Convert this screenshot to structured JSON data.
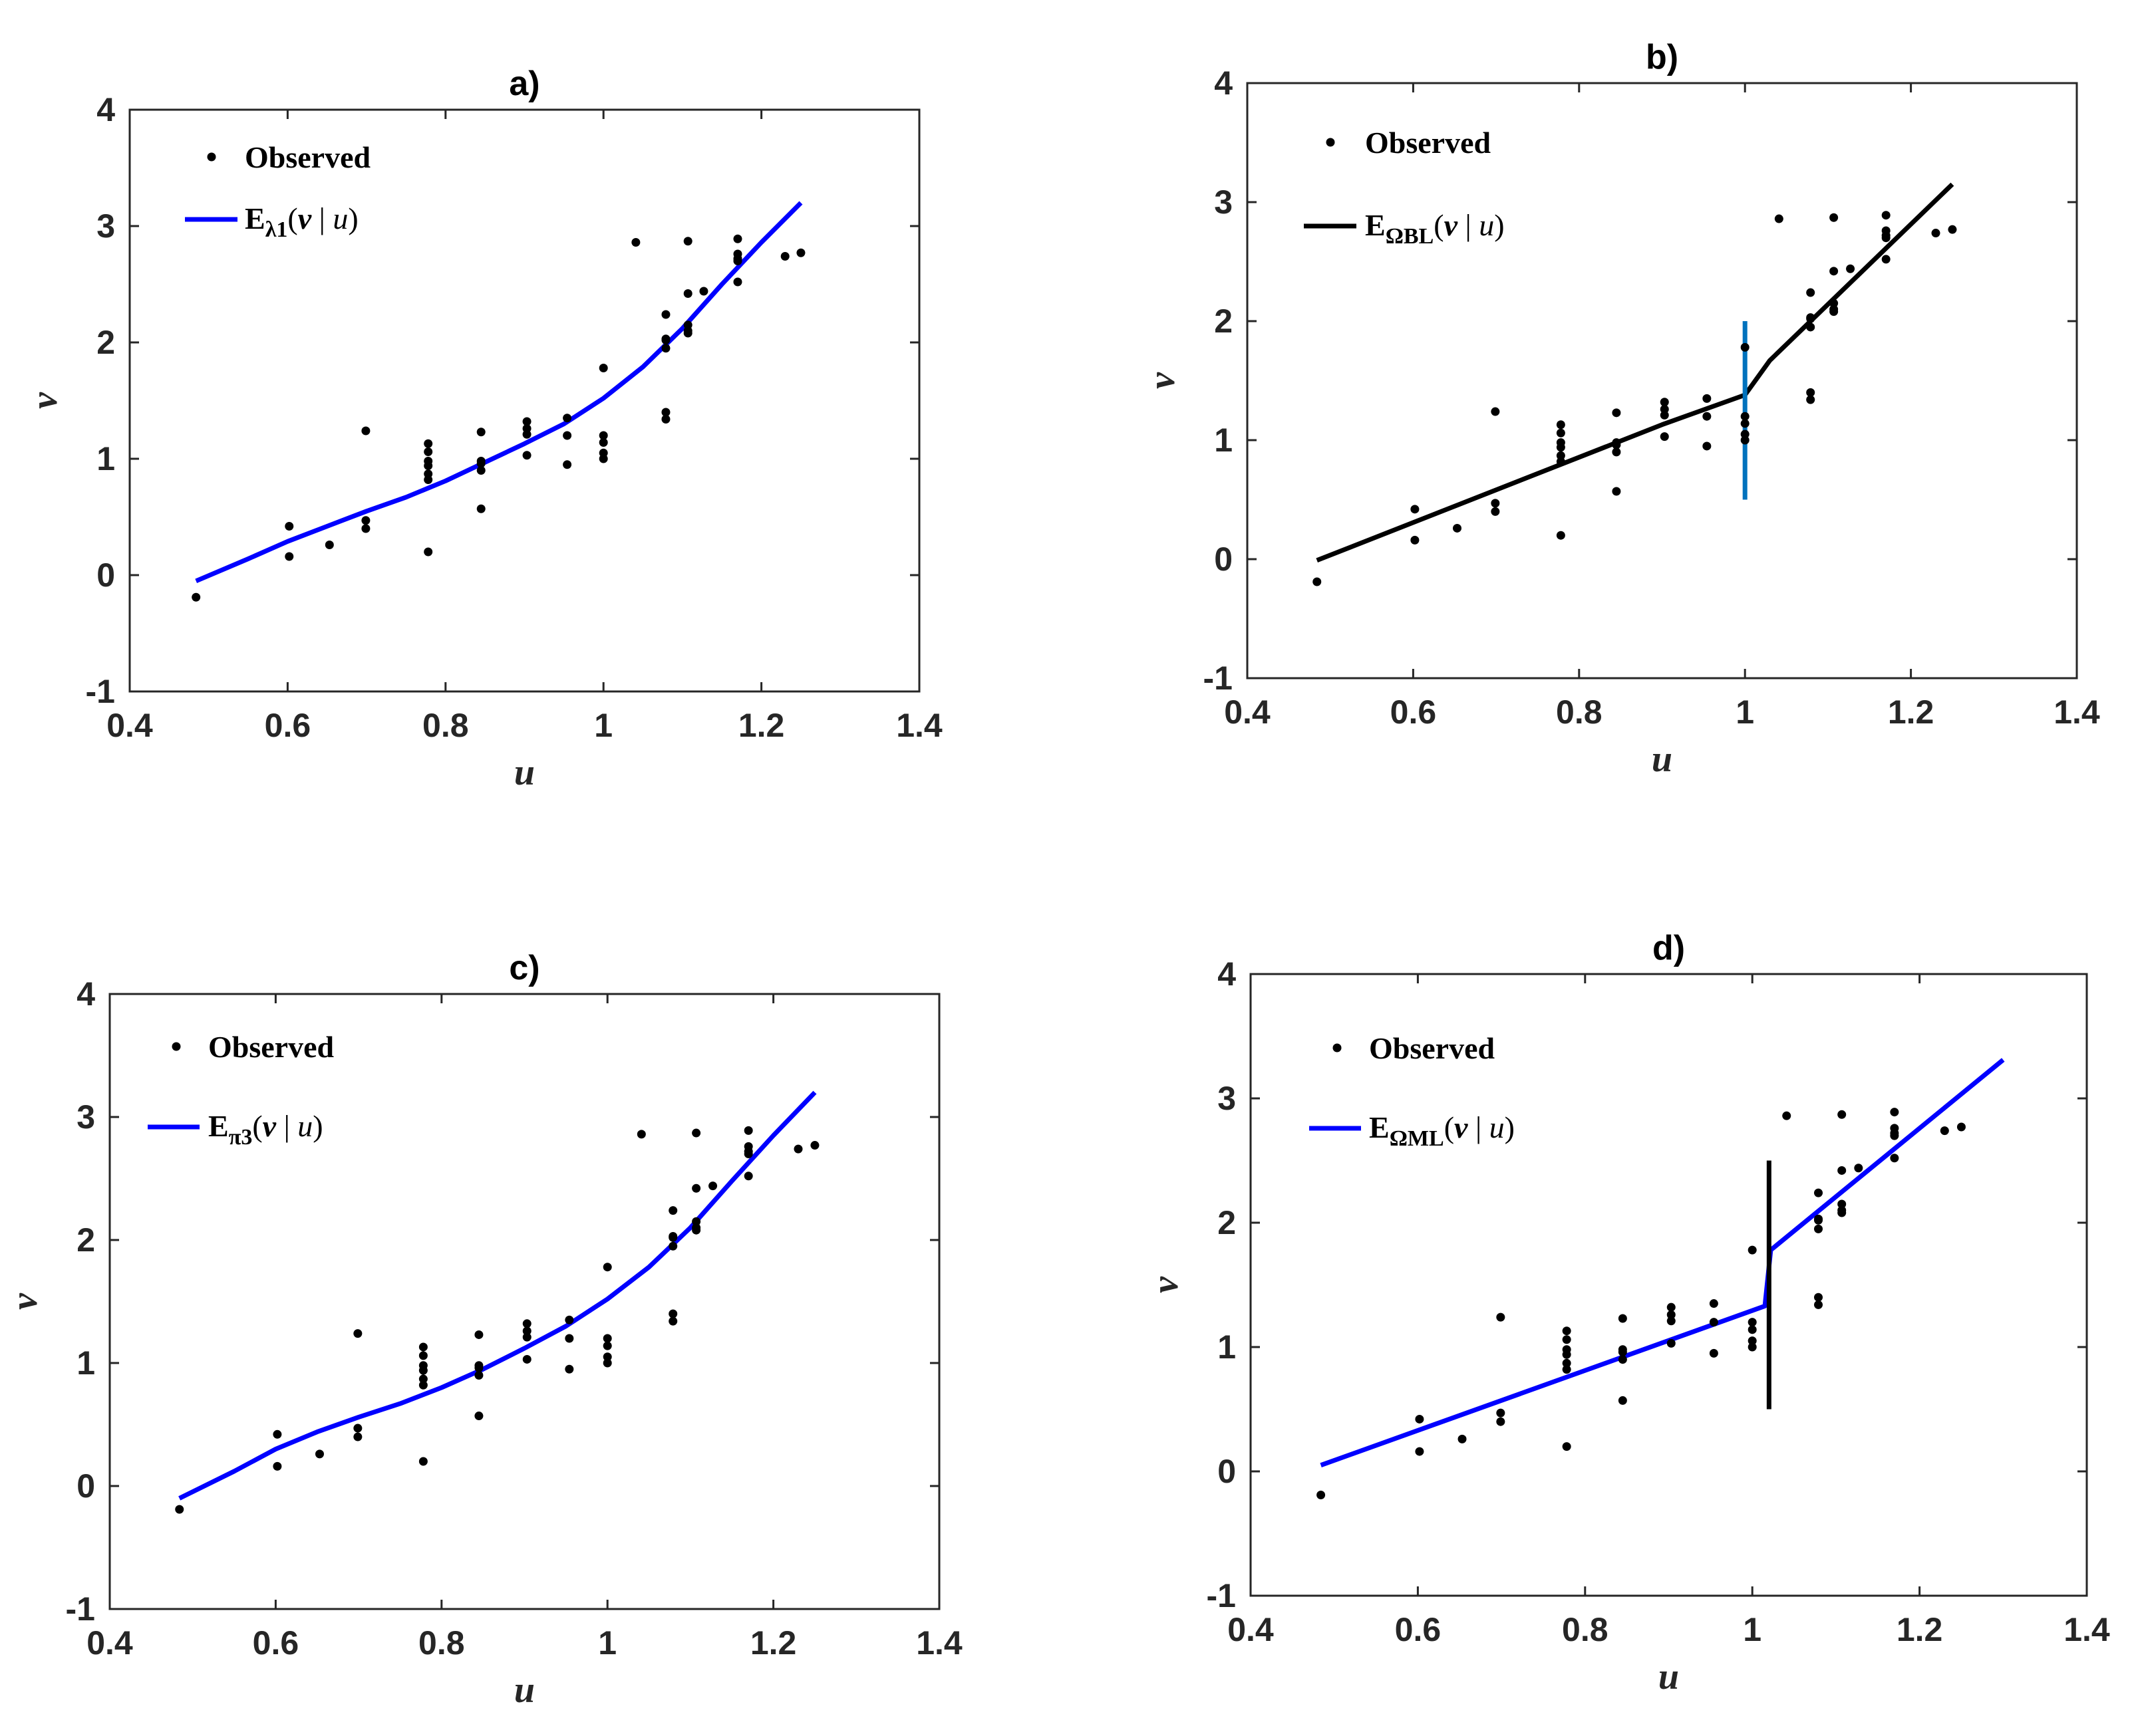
{
  "chart_data": [
    {
      "panel": "a",
      "type": "scatter",
      "title": "a)",
      "xlabel": "u",
      "ylabel": "v",
      "xlim": [
        0.4,
        1.4
      ],
      "ylim": [
        -1,
        4
      ],
      "xticks": [
        0.4,
        0.6,
        0.8,
        1,
        1.2,
        1.4
      ],
      "xtick_labels": [
        "0.4",
        "0.6",
        "0.8",
        "1",
        "1.2",
        "1.4"
      ],
      "yticks": [
        -1,
        0,
        1,
        2,
        3,
        4
      ],
      "ytick_labels": [
        "-1",
        "0",
        "1",
        "2",
        "3",
        "4"
      ],
      "legend": {
        "observed_label": "Observed",
        "fit_main": "E",
        "fit_sub": "λ1",
        "fit_open": "(",
        "fit_v": "v",
        "fit_bar": " | ",
        "fit_u": "u",
        "fit_close": ")"
      },
      "observed": {
        "name": "Observed",
        "x": [
          0.484,
          0.602,
          0.602,
          0.653,
          0.699,
          0.699,
          0.699,
          0.778,
          0.778,
          0.778,
          0.778,
          0.778,
          0.778,
          0.778,
          0.845,
          0.845,
          0.845,
          0.845,
          0.845,
          0.903,
          0.903,
          0.903,
          0.903,
          0.954,
          0.954,
          0.954,
          1.0,
          1.0,
          1.0,
          1.0,
          1.0,
          1.041,
          1.079,
          1.079,
          1.079,
          1.079,
          1.079,
          1.079,
          1.107,
          1.107,
          1.107,
          1.107,
          1.107,
          1.127,
          1.17,
          1.17,
          1.17,
          1.17,
          1.17,
          1.23,
          1.25
        ],
        "y": [
          -0.19,
          0.42,
          0.16,
          0.26,
          1.24,
          0.47,
          0.4,
          1.13,
          1.06,
          0.98,
          0.94,
          0.87,
          0.82,
          0.2,
          1.23,
          0.98,
          0.9,
          0.96,
          0.57,
          1.32,
          1.26,
          1.21,
          1.03,
          1.35,
          1.2,
          0.95,
          1.78,
          1.2,
          1.14,
          1.05,
          1.0,
          2.86,
          2.24,
          2.03,
          1.4,
          1.34,
          2.02,
          1.95,
          2.87,
          2.42,
          2.15,
          2.1,
          2.08,
          2.44,
          2.89,
          2.76,
          2.72,
          2.7,
          2.52,
          2.74,
          2.77
        ]
      },
      "fit": {
        "name": "E_λ1(v | u)",
        "color": "#0000ff",
        "x": [
          0.484,
          0.55,
          0.6,
          0.65,
          0.7,
          0.75,
          0.8,
          0.85,
          0.9,
          0.95,
          1.0,
          1.05,
          1.1,
          1.15,
          1.2,
          1.25
        ],
        "y": [
          -0.05,
          0.14,
          0.29,
          0.42,
          0.55,
          0.67,
          0.81,
          0.97,
          1.13,
          1.3,
          1.52,
          1.79,
          2.12,
          2.5,
          2.86,
          3.2
        ]
      },
      "vline": null
    },
    {
      "panel": "b",
      "type": "scatter",
      "title": "b)",
      "xlabel": "u",
      "ylabel": "v",
      "xlim": [
        0.4,
        1.4
      ],
      "ylim": [
        -1,
        4
      ],
      "xticks": [
        0.4,
        0.6,
        0.8,
        1,
        1.2,
        1.4
      ],
      "xtick_labels": [
        "0.4",
        "0.6",
        "0.8",
        "1",
        "1.2",
        "1.4"
      ],
      "yticks": [
        -1,
        0,
        1,
        2,
        3,
        4
      ],
      "ytick_labels": [
        "-1",
        "0",
        "1",
        "2",
        "3",
        "4"
      ],
      "legend": {
        "observed_label": "Observed",
        "fit_main": "E",
        "fit_sub": "ΩBL",
        "fit_open": "(",
        "fit_v": "v",
        "fit_bar": " | ",
        "fit_u": "u",
        "fit_close": ")"
      },
      "observed": {
        "name": "Observed",
        "x": [
          0.484,
          0.602,
          0.602,
          0.653,
          0.699,
          0.699,
          0.699,
          0.778,
          0.778,
          0.778,
          0.778,
          0.778,
          0.778,
          0.778,
          0.845,
          0.845,
          0.845,
          0.845,
          0.845,
          0.903,
          0.903,
          0.903,
          0.903,
          0.954,
          0.954,
          0.954,
          1.0,
          1.0,
          1.0,
          1.0,
          1.0,
          1.041,
          1.079,
          1.079,
          1.079,
          1.079,
          1.079,
          1.079,
          1.107,
          1.107,
          1.107,
          1.107,
          1.107,
          1.127,
          1.17,
          1.17,
          1.17,
          1.17,
          1.17,
          1.23,
          1.25
        ],
        "y": [
          -0.19,
          0.42,
          0.16,
          0.26,
          1.24,
          0.47,
          0.4,
          1.13,
          1.06,
          0.98,
          0.94,
          0.87,
          0.82,
          0.2,
          1.23,
          0.98,
          0.9,
          0.96,
          0.57,
          1.32,
          1.26,
          1.21,
          1.03,
          1.35,
          1.2,
          0.95,
          1.78,
          1.2,
          1.14,
          1.05,
          1.0,
          2.86,
          2.24,
          2.03,
          1.4,
          1.34,
          2.02,
          1.95,
          2.87,
          2.42,
          2.15,
          2.1,
          2.08,
          2.44,
          2.89,
          2.76,
          2.72,
          2.7,
          2.52,
          2.74,
          2.77
        ]
      },
      "fit": {
        "name": "E_ΩBL(v | u)",
        "color": "#000000",
        "x": [
          0.484,
          0.9,
          1.0,
          1.03,
          1.25
        ],
        "y": [
          -0.01,
          1.13,
          1.38,
          1.67,
          3.15
        ]
      },
      "vline": {
        "x": 1.0,
        "y": [
          0.5,
          2.0
        ],
        "color": "#0072bd"
      }
    },
    {
      "panel": "c",
      "type": "scatter",
      "title": "c)",
      "xlabel": "u",
      "ylabel": "v",
      "xlim": [
        0.4,
        1.4
      ],
      "ylim": [
        -1,
        4
      ],
      "xticks": [
        0.4,
        0.6,
        0.8,
        1,
        1.2,
        1.4
      ],
      "xtick_labels": [
        "0.4",
        "0.6",
        "0.8",
        "1",
        "1.2",
        "1.4"
      ],
      "yticks": [
        -1,
        0,
        1,
        2,
        3,
        4
      ],
      "ytick_labels": [
        "-1",
        "0",
        "1",
        "2",
        "3",
        "4"
      ],
      "legend": {
        "observed_label": "Observed",
        "fit_main": "E",
        "fit_sub": "π3",
        "fit_open": "(",
        "fit_v": "v",
        "fit_bar": " | ",
        "fit_u": "u",
        "fit_close": ")"
      },
      "observed": {
        "name": "Observed",
        "x": [
          0.484,
          0.602,
          0.602,
          0.653,
          0.699,
          0.699,
          0.699,
          0.778,
          0.778,
          0.778,
          0.778,
          0.778,
          0.778,
          0.778,
          0.845,
          0.845,
          0.845,
          0.845,
          0.845,
          0.903,
          0.903,
          0.903,
          0.903,
          0.954,
          0.954,
          0.954,
          1.0,
          1.0,
          1.0,
          1.0,
          1.0,
          1.041,
          1.079,
          1.079,
          1.079,
          1.079,
          1.079,
          1.079,
          1.107,
          1.107,
          1.107,
          1.107,
          1.107,
          1.127,
          1.17,
          1.17,
          1.17,
          1.17,
          1.17,
          1.23,
          1.25
        ],
        "y": [
          -0.19,
          0.42,
          0.16,
          0.26,
          1.24,
          0.47,
          0.4,
          1.13,
          1.06,
          0.98,
          0.94,
          0.87,
          0.82,
          0.2,
          1.23,
          0.98,
          0.9,
          0.96,
          0.57,
          1.32,
          1.26,
          1.21,
          1.03,
          1.35,
          1.2,
          0.95,
          1.78,
          1.2,
          1.14,
          1.05,
          1.0,
          2.86,
          2.24,
          2.03,
          1.4,
          1.34,
          2.02,
          1.95,
          2.87,
          2.42,
          2.15,
          2.1,
          2.08,
          2.44,
          2.89,
          2.76,
          2.72,
          2.7,
          2.52,
          2.74,
          2.77
        ]
      },
      "fit": {
        "name": "E_π3(v | u)",
        "color": "#0000ff",
        "x": [
          0.484,
          0.55,
          0.6,
          0.65,
          0.7,
          0.75,
          0.8,
          0.85,
          0.9,
          0.95,
          1.0,
          1.05,
          1.1,
          1.15,
          1.2,
          1.25
        ],
        "y": [
          -0.1,
          0.12,
          0.3,
          0.44,
          0.56,
          0.67,
          0.8,
          0.95,
          1.12,
          1.3,
          1.52,
          1.78,
          2.1,
          2.48,
          2.85,
          3.2
        ]
      },
      "vline": null
    },
    {
      "panel": "d",
      "type": "scatter",
      "title": "d)",
      "xlabel": "u",
      "ylabel": "v",
      "xlim": [
        0.4,
        1.4
      ],
      "ylim": [
        -1,
        4
      ],
      "xticks": [
        0.4,
        0.6,
        0.8,
        1,
        1.2,
        1.4
      ],
      "xtick_labels": [
        "0.4",
        "0.6",
        "0.8",
        "1",
        "1.2",
        "1.4"
      ],
      "yticks": [
        -1,
        0,
        1,
        2,
        3,
        4
      ],
      "ytick_labels": [
        "-1",
        "0",
        "1",
        "2",
        "3",
        "4"
      ],
      "legend": {
        "observed_label": "Observed",
        "fit_main": "E",
        "fit_sub": "ΩML",
        "fit_open": "(",
        "fit_v": "v",
        "fit_bar": " | ",
        "fit_u": "u",
        "fit_close": ")"
      },
      "observed": {
        "name": "Observed",
        "x": [
          0.484,
          0.602,
          0.602,
          0.653,
          0.699,
          0.699,
          0.699,
          0.778,
          0.778,
          0.778,
          0.778,
          0.778,
          0.778,
          0.778,
          0.845,
          0.845,
          0.845,
          0.845,
          0.845,
          0.903,
          0.903,
          0.903,
          0.903,
          0.954,
          0.954,
          0.954,
          1.0,
          1.0,
          1.0,
          1.0,
          1.0,
          1.041,
          1.079,
          1.079,
          1.079,
          1.079,
          1.079,
          1.079,
          1.107,
          1.107,
          1.107,
          1.107,
          1.107,
          1.127,
          1.17,
          1.17,
          1.17,
          1.17,
          1.17,
          1.23,
          1.25
        ],
        "y": [
          -0.19,
          0.42,
          0.16,
          0.26,
          1.24,
          0.47,
          0.4,
          1.13,
          1.06,
          0.98,
          0.94,
          0.87,
          0.82,
          0.2,
          1.23,
          0.98,
          0.9,
          0.96,
          0.57,
          1.32,
          1.26,
          1.21,
          1.03,
          1.35,
          1.2,
          0.95,
          1.78,
          1.2,
          1.14,
          1.05,
          1.0,
          2.86,
          2.24,
          2.03,
          1.4,
          1.34,
          2.02,
          1.95,
          2.87,
          2.42,
          2.15,
          2.1,
          2.08,
          2.44,
          2.89,
          2.76,
          2.72,
          2.7,
          2.52,
          2.74,
          2.77
        ]
      },
      "fit": {
        "name": "E_ΩML(v | u)",
        "color": "#0000ff",
        "x": [
          0.484,
          1.015,
          1.022,
          1.3
        ],
        "y": [
          0.05,
          1.33,
          1.78,
          3.31
        ]
      },
      "vline": {
        "x": 1.02,
        "y": [
          0.5,
          2.5
        ],
        "color": "#000000"
      }
    }
  ]
}
